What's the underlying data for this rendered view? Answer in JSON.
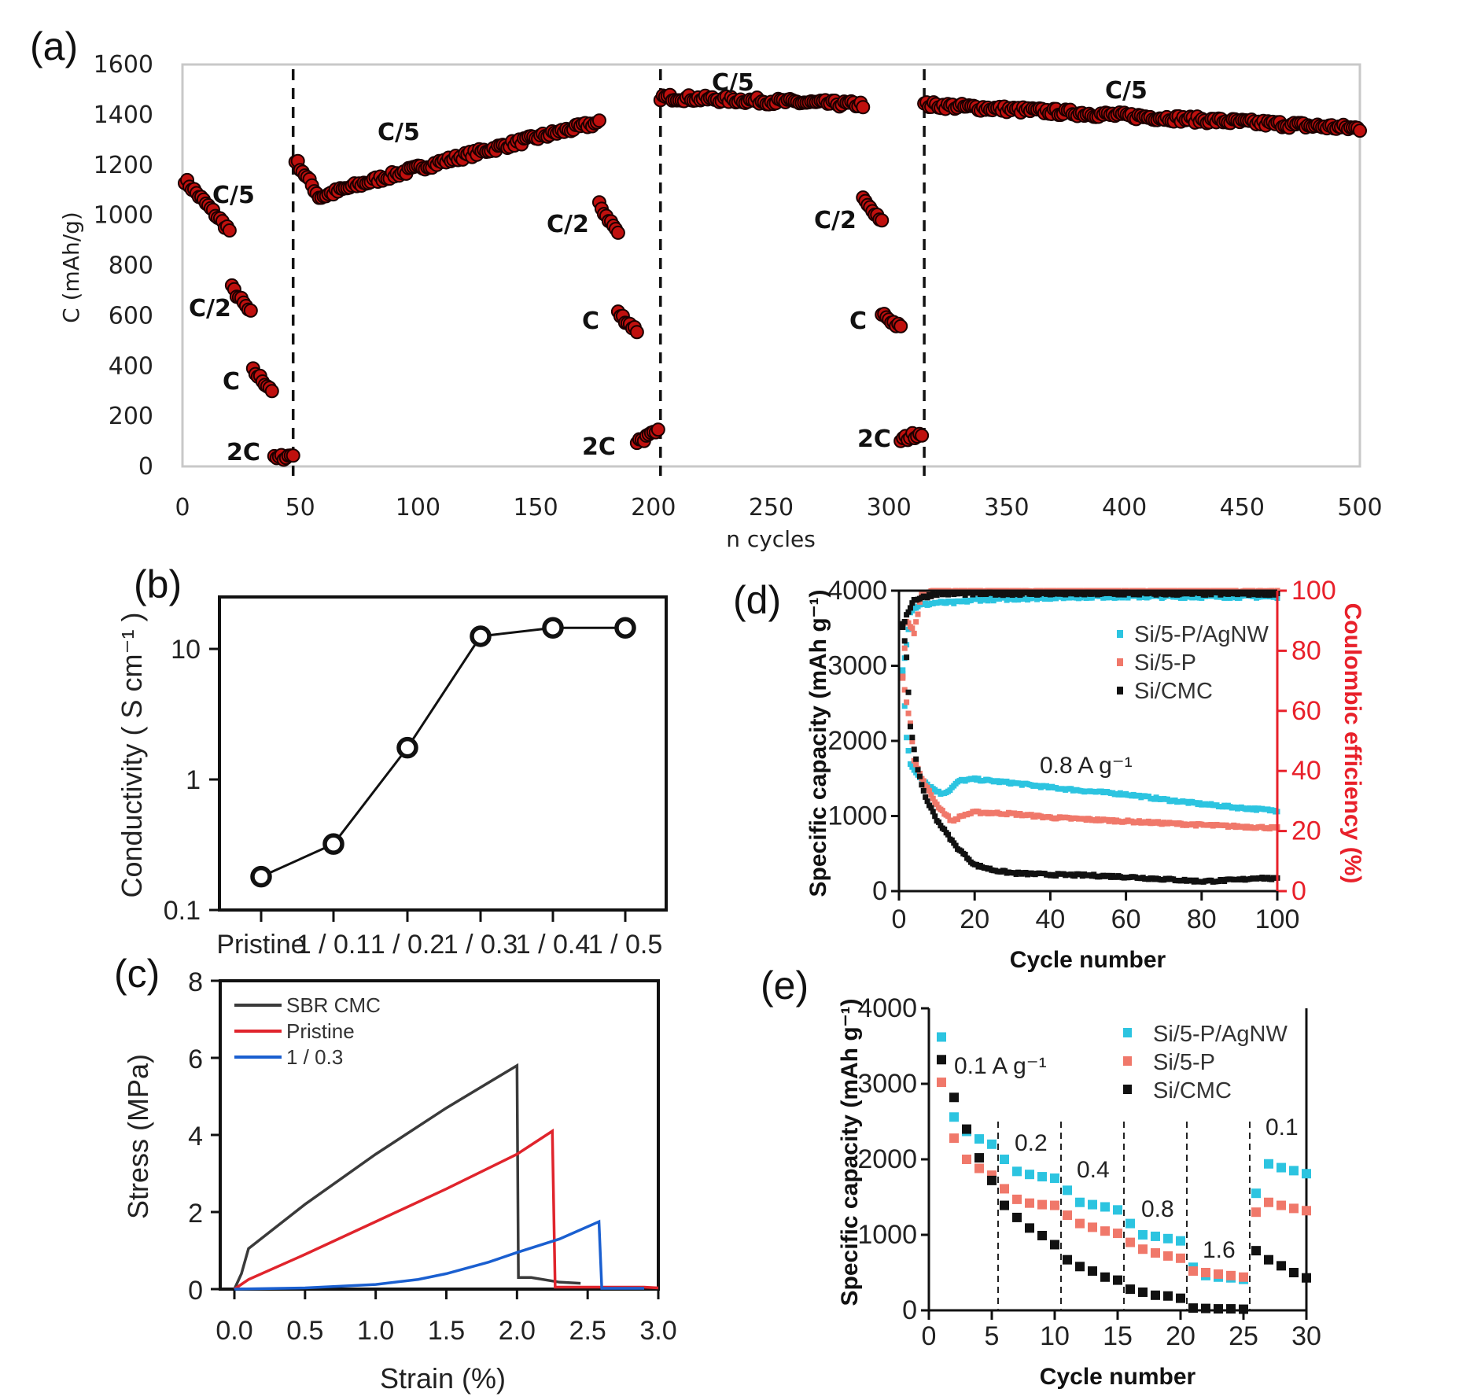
{
  "panel_labels": {
    "a": "(a)",
    "b": "(b)",
    "c": "(c)",
    "d": "(d)",
    "e": "(e)"
  },
  "chart_data": [
    {
      "id": "a",
      "type": "scatter",
      "title": "",
      "xlabel": "n cycles",
      "ylabel": "C (mAh/g)",
      "xlim": [
        0,
        500
      ],
      "ylim": [
        0,
        1600
      ],
      "xticks": [
        0,
        50,
        100,
        150,
        200,
        250,
        300,
        350,
        400,
        450,
        500
      ],
      "yticks": [
        0,
        200,
        400,
        600,
        800,
        1000,
        1200,
        1400,
        1600
      ],
      "vlines": [
        47,
        203,
        315
      ],
      "marker_color": "#c0100e",
      "segments": [
        {
          "label": "C/5",
          "x": [
            1,
            20
          ],
          "y": [
            1140,
            940
          ]
        },
        {
          "label": "C/2",
          "x": [
            21,
            29
          ],
          "y": [
            710,
            610
          ]
        },
        {
          "label": "C",
          "x": [
            30,
            38
          ],
          "y": [
            380,
            305
          ]
        },
        {
          "label": "2C",
          "x": [
            39,
            47
          ],
          "y": [
            30,
            45
          ]
        },
        {
          "label": "C/5",
          "x": [
            48,
            177
          ],
          "y": [
            1220,
            1370
          ],
          "shape": "dip-then-rise",
          "min": 1070
        },
        {
          "label": "C/2",
          "x": [
            177,
            185
          ],
          "y": [
            1040,
            930
          ]
        },
        {
          "label": "C",
          "x": [
            185,
            193
          ],
          "y": [
            610,
            540
          ]
        },
        {
          "label": "2C",
          "x": [
            193,
            202
          ],
          "y": [
            100,
            135
          ]
        },
        {
          "label": "C/5",
          "x": [
            203,
            289
          ],
          "y": [
            1470,
            1440
          ]
        },
        {
          "label": "C/2",
          "x": [
            289,
            297
          ],
          "y": [
            1060,
            970
          ]
        },
        {
          "label": "C",
          "x": [
            297,
            305
          ],
          "y": [
            610,
            550
          ]
        },
        {
          "label": "2C",
          "x": [
            305,
            314
          ],
          "y": [
            105,
            135
          ]
        },
        {
          "label": "C/5",
          "x": [
            315,
            500
          ],
          "y": [
            1440,
            1345
          ]
        }
      ],
      "annotations": [
        "C/5",
        "C/2",
        "C",
        "2C",
        "C/5",
        "C/2",
        "C",
        "2C",
        "C/5",
        "C/2",
        "C",
        "2C",
        "C/5"
      ]
    },
    {
      "id": "b",
      "type": "line",
      "xlabel": "",
      "ylabel": "Conductivity ( S cm⁻¹ )",
      "yscale": "log",
      "ylim": [
        0.1,
        30
      ],
      "ytick_labels": [
        "0.1",
        "1",
        "10"
      ],
      "yticks": [
        0.1,
        1,
        10
      ],
      "categories": [
        "Pristine",
        "1 / 0.1",
        "1 / 0.2",
        "1 / 0.3",
        "1 / 0.4",
        "1 / 0.5"
      ],
      "values": [
        0.18,
        0.32,
        1.75,
        12.5,
        14.5,
        14.5
      ]
    },
    {
      "id": "c",
      "type": "line",
      "xlabel": "Strain (%)",
      "ylabel": "Stress (MPa)",
      "xlim": [
        -0.05,
        3.0
      ],
      "ylim": [
        0,
        8
      ],
      "xticks": [
        0.0,
        0.5,
        1.0,
        1.5,
        2.0,
        2.5,
        3.0
      ],
      "xtick_labels": [
        "0.0",
        "0.5",
        "1.0",
        "1.5",
        "2.0",
        "2.5",
        "3.0"
      ],
      "yticks": [
        0,
        2,
        4,
        6,
        8
      ],
      "legend": "top-left",
      "series": [
        {
          "name": "SBR CMC",
          "color": "#3a3a3a",
          "points": [
            [
              0,
              0
            ],
            [
              0.05,
              0.4
            ],
            [
              0.1,
              1.05
            ],
            [
              0.5,
              2.2
            ],
            [
              1.0,
              3.5
            ],
            [
              1.5,
              4.7
            ],
            [
              2.0,
              5.8
            ],
            [
              2.01,
              0.3
            ],
            [
              2.1,
              0.3
            ],
            [
              2.3,
              0.18
            ],
            [
              2.45,
              0.15
            ]
          ]
        },
        {
          "name": "Pristine",
          "color": "#e0242c",
          "points": [
            [
              0,
              0
            ],
            [
              0.1,
              0.25
            ],
            [
              0.5,
              0.9
            ],
            [
              1.0,
              1.75
            ],
            [
              1.5,
              2.6
            ],
            [
              2.0,
              3.5
            ],
            [
              2.25,
              4.1
            ],
            [
              2.27,
              0.05
            ],
            [
              2.6,
              0.05
            ],
            [
              2.9,
              0.05
            ],
            [
              3.0,
              0.03
            ]
          ]
        },
        {
          "name": "1 / 0.3",
          "color": "#1a5fd0",
          "points": [
            [
              0,
              0
            ],
            [
              0.5,
              0.03
            ],
            [
              1.0,
              0.12
            ],
            [
              1.3,
              0.25
            ],
            [
              1.5,
              0.4
            ],
            [
              1.8,
              0.7
            ],
            [
              2.0,
              0.95
            ],
            [
              2.3,
              1.3
            ],
            [
              2.58,
              1.75
            ],
            [
              2.6,
              0.02
            ],
            [
              2.9,
              0.02
            ]
          ]
        }
      ]
    },
    {
      "id": "d",
      "type": "scatter",
      "xlabel": "Cycle number",
      "ylabel": "Specific capacity (mAh g⁻¹)",
      "y2label": "Coulombic efficiency (%)",
      "xlim": [
        0,
        100
      ],
      "ylim": [
        0,
        4000
      ],
      "y2lim": [
        0,
        100
      ],
      "xticks": [
        0,
        20,
        40,
        60,
        80,
        100
      ],
      "yticks": [
        0,
        1000,
        2000,
        3000,
        4000
      ],
      "y2ticks": [
        0,
        20,
        40,
        60,
        80,
        100
      ],
      "annotation": "0.8 A g⁻¹",
      "legend": "top-right",
      "series": [
        {
          "name": "Si/5-P/AgNW",
          "color": "#2cc4e0",
          "capacity": [
            [
              1,
              2900
            ],
            [
              2,
              2050
            ],
            [
              3,
              1680
            ],
            [
              5,
              1550
            ],
            [
              8,
              1400
            ],
            [
              11,
              1300
            ],
            [
              13,
              1330
            ],
            [
              16,
              1470
            ],
            [
              20,
              1490
            ],
            [
              30,
              1440
            ],
            [
              40,
              1380
            ],
            [
              50,
              1330
            ],
            [
              60,
              1290
            ],
            [
              70,
              1220
            ],
            [
              80,
              1160
            ],
            [
              90,
              1110
            ],
            [
              100,
              1070
            ]
          ],
          "efficiency": [
            [
              1,
              74
            ],
            [
              2,
              82
            ],
            [
              3,
              93
            ],
            [
              5,
              95
            ],
            [
              10,
              96
            ],
            [
              15,
              96
            ],
            [
              20,
              97
            ],
            [
              50,
              98
            ],
            [
              100,
              98
            ]
          ]
        },
        {
          "name": "Si/5-P",
          "color": "#f0786a",
          "capacity": [
            [
              1,
              2850
            ],
            [
              2,
              2500
            ],
            [
              3,
              2250
            ],
            [
              4,
              1750
            ],
            [
              6,
              1500
            ],
            [
              10,
              1150
            ],
            [
              14,
              930
            ],
            [
              17,
              1010
            ],
            [
              20,
              1050
            ],
            [
              30,
              1030
            ],
            [
              40,
              980
            ],
            [
              60,
              930
            ],
            [
              80,
              880
            ],
            [
              100,
              840
            ]
          ],
          "efficiency": [
            [
              1,
              71
            ],
            [
              2,
              90
            ],
            [
              4,
              86
            ],
            [
              6,
              99
            ],
            [
              10,
              100
            ],
            [
              100,
              100
            ]
          ]
        },
        {
          "name": "Si/CMC",
          "color": "#111111",
          "capacity": [
            [
              1,
              3550
            ],
            [
              2,
              3100
            ],
            [
              3,
              2200
            ],
            [
              5,
              1600
            ],
            [
              7,
              1250
            ],
            [
              10,
              950
            ],
            [
              15,
              600
            ],
            [
              20,
              350
            ],
            [
              25,
              280
            ],
            [
              30,
              240
            ],
            [
              40,
              220
            ],
            [
              50,
              210
            ],
            [
              60,
              190
            ],
            [
              70,
              160
            ],
            [
              80,
              130
            ],
            [
              90,
              150
            ],
            [
              95,
              180
            ],
            [
              100,
              160
            ]
          ],
          "efficiency": [
            [
              1,
              88
            ],
            [
              2,
              92
            ],
            [
              4,
              97
            ],
            [
              10,
              99
            ],
            [
              100,
              99
            ]
          ]
        }
      ]
    },
    {
      "id": "e",
      "type": "scatter",
      "xlabel": "Cycle number",
      "ylabel": "Specific capacity (mAh g⁻¹)",
      "xlim": [
        0,
        30
      ],
      "ylim": [
        0,
        4000
      ],
      "xticks": [
        0,
        5,
        10,
        15,
        20,
        25,
        30
      ],
      "yticks": [
        0,
        1000,
        2000,
        3000,
        4000
      ],
      "vlines": [
        5.5,
        10.5,
        15.5,
        20.5,
        25.5
      ],
      "rate_labels": [
        "0.1 A g⁻¹",
        "0.2",
        "0.4",
        "0.8",
        "1.6",
        "0.1"
      ],
      "legend": "top-right",
      "series": [
        {
          "name": "Si/5-P/AgNW",
          "color": "#2cc4e0",
          "values": [
            3620,
            2560,
            2370,
            2270,
            2200,
            2000,
            1840,
            1800,
            1770,
            1750,
            1590,
            1430,
            1400,
            1370,
            1330,
            1150,
            1000,
            980,
            950,
            920,
            570,
            460,
            440,
            430,
            410,
            1550,
            1940,
            1890,
            1850,
            1810
          ]
        },
        {
          "name": "Si/5-P",
          "color": "#f0786a",
          "values": [
            3020,
            2280,
            2000,
            1880,
            1790,
            1610,
            1470,
            1420,
            1400,
            1390,
            1260,
            1150,
            1100,
            1050,
            1020,
            900,
            810,
            760,
            720,
            690,
            520,
            500,
            480,
            460,
            440,
            1300,
            1430,
            1390,
            1350,
            1320
          ]
        },
        {
          "name": "Si/CMC",
          "color": "#111111",
          "values": [
            3320,
            2820,
            2400,
            2020,
            1720,
            1390,
            1230,
            1090,
            990,
            870,
            670,
            580,
            520,
            440,
            400,
            280,
            240,
            200,
            190,
            160,
            30,
            25,
            20,
            20,
            15,
            790,
            670,
            590,
            500,
            430
          ]
        }
      ]
    }
  ]
}
